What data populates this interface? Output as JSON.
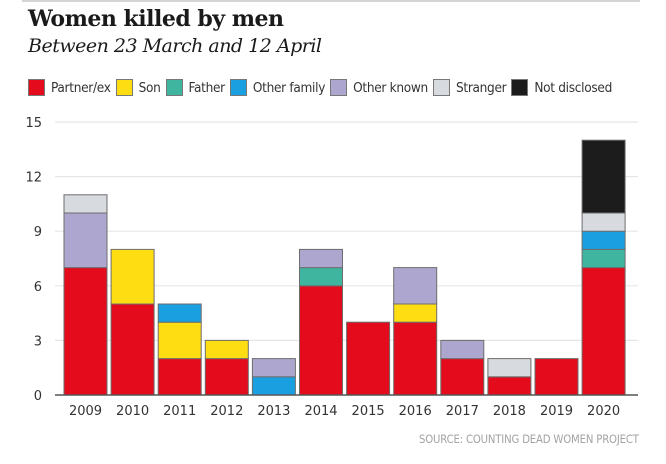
{
  "header": {
    "title": "Women killed by men",
    "subtitle": "Between 23 March and 12 April"
  },
  "legend": [
    {
      "label": "Partner/ex",
      "color": "#e30b1c"
    },
    {
      "label": "Son",
      "color": "#fedd12"
    },
    {
      "label": "Father",
      "color": "#3fb5a0"
    },
    {
      "label": "Other family",
      "color": "#1aa0e0"
    },
    {
      "label": "Other known",
      "color": "#ada7cf"
    },
    {
      "label": "Stranger",
      "color": "#d7dade"
    },
    {
      "label": "Not disclosed",
      "color": "#1c1c1c"
    }
  ],
  "source": "SOURCE: COUNTING DEAD WOMEN PROJECT",
  "chart_data": {
    "type": "bar",
    "stacked": true,
    "title": "Women killed by men",
    "subtitle": "Between 23 March and 12 April",
    "xlabel": "",
    "ylabel": "",
    "ylim": [
      0,
      15
    ],
    "yticks": [
      0,
      3,
      6,
      9,
      12,
      15
    ],
    "grid": true,
    "legend_position": "top",
    "categories": [
      "2009",
      "2010",
      "2011",
      "2012",
      "2013",
      "2014",
      "2015",
      "2016",
      "2017",
      "2018",
      "2019",
      "2020"
    ],
    "series": [
      {
        "name": "Partner/ex",
        "color": "#e30b1c",
        "values": [
          7,
          5,
          2,
          2,
          0,
          6,
          4,
          4,
          2,
          1,
          2,
          7
        ]
      },
      {
        "name": "Son",
        "color": "#fedd12",
        "values": [
          0,
          3,
          2,
          1,
          0,
          0,
          0,
          1,
          0,
          0,
          0,
          0
        ]
      },
      {
        "name": "Father",
        "color": "#3fb5a0",
        "values": [
          0,
          0,
          0,
          0,
          0,
          1,
          0,
          0,
          0,
          0,
          0,
          1
        ]
      },
      {
        "name": "Other family",
        "color": "#1aa0e0",
        "values": [
          0,
          0,
          1,
          0,
          1,
          0,
          0,
          0,
          0,
          0,
          0,
          1
        ]
      },
      {
        "name": "Other known",
        "color": "#ada7cf",
        "values": [
          3,
          0,
          0,
          0,
          1,
          1,
          0,
          2,
          1,
          0,
          0,
          0
        ]
      },
      {
        "name": "Stranger",
        "color": "#d7dade",
        "values": [
          1,
          0,
          0,
          0,
          0,
          0,
          0,
          0,
          0,
          1,
          0,
          1
        ]
      },
      {
        "name": "Not disclosed",
        "color": "#1c1c1c",
        "values": [
          0,
          0,
          0,
          0,
          0,
          0,
          0,
          0,
          0,
          0,
          0,
          4
        ]
      }
    ],
    "source": "SOURCE: COUNTING DEAD WOMEN PROJECT"
  }
}
